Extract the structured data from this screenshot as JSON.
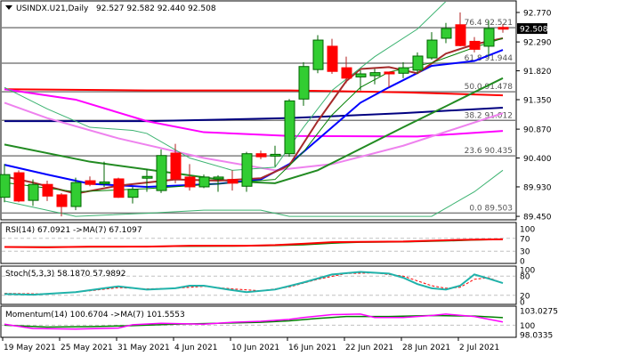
{
  "header": {
    "icon": "triangle-down-icon",
    "symbol": "USINDX.U21,Daily",
    "ohlc": "92.527 92.582 92.440 92.508"
  },
  "price_axis": {
    "ticks": [
      "92.770",
      "92.290",
      "91.820",
      "91.350",
      "90.870",
      "90.400",
      "89.930",
      "89.450"
    ],
    "tick_values": [
      92.77,
      92.29,
      91.82,
      91.35,
      90.87,
      90.4,
      89.93,
      89.45
    ],
    "current": "92.508",
    "current_value": 92.508
  },
  "fibonacci": [
    {
      "label": "76.4 92.521",
      "value": 92.521
    },
    {
      "label": "61.8 91.944",
      "value": 91.944
    },
    {
      "label": "50.0 91.478",
      "value": 91.478
    },
    {
      "label": "38.2 91.012",
      "value": 91.012
    },
    {
      "label": "23.6 90.435",
      "value": 90.435
    },
    {
      "label": "0.0 89.503",
      "value": 89.503
    }
  ],
  "colors": {
    "bull": "#32cd32",
    "bear": "#ff0000",
    "grid": "#c0c0c0"
  },
  "candles": [
    [
      89.76,
      90.3,
      89.68,
      90.13
    ],
    [
      90.16,
      90.2,
      89.68,
      89.7
    ],
    [
      89.71,
      90.05,
      89.62,
      89.97
    ],
    [
      89.97,
      90.03,
      89.7,
      89.78
    ],
    [
      89.8,
      89.83,
      89.45,
      89.61
    ],
    [
      89.61,
      90.08,
      89.55,
      90.0
    ],
    [
      90.03,
      90.1,
      89.94,
      89.97
    ],
    [
      89.99,
      90.34,
      89.93,
      90.01
    ],
    [
      90.06,
      90.08,
      89.75,
      89.76
    ],
    [
      89.76,
      89.93,
      89.66,
      89.89
    ],
    [
      90.08,
      90.22,
      89.85,
      90.1
    ],
    [
      89.87,
      90.54,
      89.83,
      90.44
    ],
    [
      90.48,
      90.63,
      89.99,
      90.06
    ],
    [
      90.09,
      90.3,
      89.87,
      89.93
    ],
    [
      89.93,
      90.13,
      89.91,
      90.09
    ],
    [
      90.06,
      90.12,
      89.85,
      90.09
    ],
    [
      90.05,
      90.2,
      89.87,
      89.99
    ],
    [
      89.94,
      90.5,
      89.85,
      90.47
    ],
    [
      90.47,
      90.52,
      90.38,
      90.42
    ],
    [
      90.44,
      90.6,
      90.26,
      90.46
    ],
    [
      90.47,
      91.36,
      90.42,
      91.33
    ],
    [
      91.36,
      91.96,
      91.25,
      91.89
    ],
    [
      91.84,
      92.4,
      91.78,
      92.32
    ],
    [
      92.22,
      92.34,
      91.77,
      91.81
    ],
    [
      91.87,
      92.05,
      91.62,
      91.7
    ],
    [
      91.72,
      91.83,
      91.5,
      91.77
    ],
    [
      91.74,
      91.85,
      91.6,
      91.79
    ],
    [
      91.8,
      91.8,
      91.55,
      91.77
    ],
    [
      91.78,
      91.96,
      91.7,
      91.87
    ],
    [
      91.83,
      92.12,
      91.77,
      92.06
    ],
    [
      92.03,
      92.45,
      92.0,
      92.32
    ],
    [
      92.35,
      92.6,
      92.27,
      92.51
    ],
    [
      92.57,
      92.77,
      92.22,
      92.23
    ],
    [
      92.3,
      92.37,
      92.12,
      92.17
    ],
    [
      92.22,
      92.64,
      92.05,
      92.51
    ],
    [
      92.527,
      92.582,
      92.44,
      92.508
    ]
  ],
  "overlays": [
    {
      "color": "#ff0000",
      "width": 2,
      "points": [
        [
          0,
          91.52
        ],
        [
          10,
          91.5
        ],
        [
          20,
          91.5
        ],
        [
          28,
          91.47
        ],
        [
          35,
          91.42
        ]
      ]
    },
    {
      "color": "#000080",
      "width": 2,
      "points": [
        [
          0,
          91.0
        ],
        [
          10,
          91.0
        ],
        [
          20,
          91.05
        ],
        [
          28,
          91.13
        ],
        [
          35,
          91.22
        ]
      ]
    },
    {
      "color": "#ff00ff",
      "width": 2,
      "points": [
        [
          0,
          91.52
        ],
        [
          5,
          91.35
        ],
        [
          10,
          91.0
        ],
        [
          14,
          90.82
        ],
        [
          20,
          90.76
        ],
        [
          29,
          90.75
        ],
        [
          35,
          90.84
        ]
      ]
    },
    {
      "color": "#ee82ee",
      "width": 2,
      "points": [
        [
          0,
          91.3
        ],
        [
          3,
          91.05
        ],
        [
          8,
          90.72
        ],
        [
          14,
          90.4
        ],
        [
          19,
          90.2
        ],
        [
          23,
          90.3
        ],
        [
          28,
          90.6
        ],
        [
          35,
          91.13
        ]
      ]
    },
    {
      "color": "#228b22",
      "width": 2,
      "points": [
        [
          0,
          90.62
        ],
        [
          6,
          90.34
        ],
        [
          12,
          90.15
        ],
        [
          16,
          90.02
        ],
        [
          19,
          89.99
        ],
        [
          22,
          90.2
        ],
        [
          28,
          90.9
        ],
        [
          35,
          91.7
        ]
      ]
    },
    {
      "color": "#0000ff",
      "width": 2,
      "points": [
        [
          0,
          90.29
        ],
        [
          3,
          90.13
        ],
        [
          6,
          89.98
        ],
        [
          10,
          89.93
        ],
        [
          15,
          89.98
        ],
        [
          18,
          90.05
        ],
        [
          20,
          90.3
        ],
        [
          22,
          90.7
        ],
        [
          25,
          91.3
        ],
        [
          27,
          91.55
        ],
        [
          30,
          91.9
        ],
        [
          33,
          91.98
        ],
        [
          35,
          92.16
        ]
      ]
    },
    {
      "color": "#a52a2a",
      "width": 2,
      "points": [
        [
          0,
          90.1
        ],
        [
          2,
          90.0
        ],
        [
          5,
          89.82
        ],
        [
          8,
          89.95
        ],
        [
          12,
          90.05
        ],
        [
          15,
          90.03
        ],
        [
          18,
          90.07
        ],
        [
          20,
          90.28
        ],
        [
          22,
          91.0
        ],
        [
          24,
          91.65
        ],
        [
          25,
          91.85
        ],
        [
          27,
          91.88
        ],
        [
          29,
          91.78
        ],
        [
          31,
          92.1
        ],
        [
          33,
          92.25
        ],
        [
          35,
          92.35
        ]
      ]
    },
    {
      "color": "#3cb371",
      "width": 1,
      "points": [
        [
          0,
          91.55
        ],
        [
          3,
          91.2
        ],
        [
          6,
          90.9
        ],
        [
          9,
          90.85
        ],
        [
          10,
          90.8
        ],
        [
          13,
          90.4
        ],
        [
          16,
          90.2
        ],
        [
          19,
          90.25
        ],
        [
          21,
          90.9
        ],
        [
          23,
          91.5
        ],
        [
          26,
          92.05
        ],
        [
          29,
          92.5
        ],
        [
          31,
          92.95
        ]
      ]
    },
    {
      "color": "#3cb371",
      "width": 1,
      "points": [
        [
          0,
          89.7
        ],
        [
          5,
          89.45
        ],
        [
          10,
          89.5
        ],
        [
          14,
          89.55
        ],
        [
          18,
          89.55
        ],
        [
          20,
          89.45
        ],
        [
          30,
          89.45
        ],
        [
          33,
          89.85
        ],
        [
          35,
          90.2
        ]
      ]
    },
    {
      "color": "#008000",
      "width": 1,
      "points": [
        [
          0,
          90.0
        ],
        [
          5,
          89.85
        ],
        [
          10,
          89.9
        ],
        [
          15,
          89.98
        ],
        [
          19,
          90.05
        ],
        [
          21,
          90.5
        ],
        [
          23,
          91.1
        ],
        [
          25,
          91.55
        ],
        [
          27,
          91.8
        ],
        [
          30,
          91.95
        ],
        [
          33,
          92.2
        ],
        [
          35,
          92.35
        ]
      ]
    }
  ],
  "rsi": {
    "label": "RSI(14) 67.0921  ->MA(7) 67.1097",
    "levels": [
      "100",
      "70",
      "30",
      "0"
    ],
    "line": {
      "color": "#ff0000",
      "points": [
        [
          0,
          43
        ],
        [
          3,
          42
        ],
        [
          6,
          44
        ],
        [
          10,
          44
        ],
        [
          13,
          47
        ],
        [
          17,
          47
        ],
        [
          19,
          49
        ],
        [
          21,
          53
        ],
        [
          23,
          58
        ],
        [
          25,
          59
        ],
        [
          28,
          60
        ],
        [
          31,
          64
        ],
        [
          33,
          66
        ],
        [
          35,
          67.09
        ]
      ]
    },
    "ma": {
      "color": "#008000",
      "points": [
        [
          0,
          43
        ],
        [
          4,
          43
        ],
        [
          8,
          43.5
        ],
        [
          12,
          45
        ],
        [
          16,
          46
        ],
        [
          19,
          47.5
        ],
        [
          21,
          50
        ],
        [
          23,
          55
        ],
        [
          25,
          58
        ],
        [
          28,
          59
        ],
        [
          31,
          62
        ],
        [
          33,
          65
        ],
        [
          35,
          67.11
        ]
      ]
    }
  },
  "stoch": {
    "label": "Stoch(5,3,3) 58.1870 57.9892",
    "levels": [
      "100",
      "80",
      "20",
      "0"
    ],
    "k": {
      "color": "#20b2aa",
      "points": [
        [
          0,
          24
        ],
        [
          2,
          22
        ],
        [
          5,
          30
        ],
        [
          7,
          42
        ],
        [
          8,
          48
        ],
        [
          10,
          38
        ],
        [
          12,
          42
        ],
        [
          13,
          50
        ],
        [
          14,
          50
        ],
        [
          16,
          36
        ],
        [
          17,
          30
        ],
        [
          19,
          38
        ],
        [
          21,
          60
        ],
        [
          23,
          85
        ],
        [
          25,
          93
        ],
        [
          27,
          88
        ],
        [
          28,
          75
        ],
        [
          29,
          55
        ],
        [
          30,
          42
        ],
        [
          31,
          38
        ],
        [
          32,
          50
        ],
        [
          33,
          85
        ],
        [
          34,
          72
        ],
        [
          35,
          58.19
        ]
      ]
    },
    "d": {
      "color": "#ff0000",
      "points": [
        [
          0,
          26
        ],
        [
          3,
          24
        ],
        [
          6,
          34
        ],
        [
          8,
          44
        ],
        [
          10,
          40
        ],
        [
          12,
          42
        ],
        [
          14,
          48
        ],
        [
          16,
          40
        ],
        [
          18,
          34
        ],
        [
          20,
          46
        ],
        [
          22,
          70
        ],
        [
          24,
          88
        ],
        [
          26,
          90
        ],
        [
          28,
          80
        ],
        [
          29,
          65
        ],
        [
          30,
          50
        ],
        [
          31,
          42
        ],
        [
          32,
          45
        ],
        [
          33,
          70
        ],
        [
          34,
          75
        ],
        [
          35,
          57.99
        ]
      ]
    }
  },
  "momentum": {
    "label": "Momentum(14) 100.6704  ->MA(7) 101.5553",
    "levels": [
      "103.0275",
      "100",
      "98.0335"
    ],
    "range": [
      98.0335,
      103.0275
    ],
    "line": {
      "color": "#ff00ff",
      "points": [
        [
          0,
          100.2
        ],
        [
          2,
          99.3
        ],
        [
          5,
          99.2
        ],
        [
          8,
          99.4
        ],
        [
          9,
          100.1
        ],
        [
          11,
          100.4
        ],
        [
          14,
          100.2
        ],
        [
          16,
          100.6
        ],
        [
          18,
          100.8
        ],
        [
          20,
          101.2
        ],
        [
          21,
          101.6
        ],
        [
          23,
          102.2
        ],
        [
          25,
          102.3
        ],
        [
          26,
          101.6
        ],
        [
          28,
          101.6
        ],
        [
          30,
          102.0
        ],
        [
          31,
          102.3
        ],
        [
          33,
          101.8
        ],
        [
          35,
          100.67
        ]
      ]
    },
    "ma": {
      "color": "#008000",
      "points": [
        [
          0,
          100.0
        ],
        [
          3,
          99.6
        ],
        [
          6,
          99.7
        ],
        [
          9,
          99.9
        ],
        [
          12,
          100.2
        ],
        [
          15,
          100.4
        ],
        [
          18,
          100.6
        ],
        [
          20,
          100.9
        ],
        [
          22,
          101.4
        ],
        [
          24,
          101.8
        ],
        [
          27,
          101.8
        ],
        [
          30,
          102.0
        ],
        [
          33,
          101.9
        ],
        [
          35,
          101.56
        ]
      ]
    }
  },
  "dates": [
    "19 May 2021",
    "25 May 2021",
    "31 May 2021",
    "4 Jun 2021",
    "10 Jun 2021",
    "16 Jun 2021",
    "22 Jun 2021",
    "28 Jun 2021",
    "2 Jul 2021"
  ]
}
